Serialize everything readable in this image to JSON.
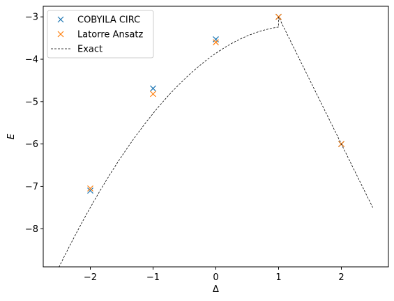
{
  "chart_data": {
    "type": "scatter",
    "title": "",
    "xlabel": "Δ",
    "ylabel": "E",
    "xlim": [
      -2.75,
      2.75
    ],
    "ylim": [
      -8.9,
      -2.75
    ],
    "xticks": [
      -2,
      -1,
      0,
      1,
      2
    ],
    "yticks": [
      -8,
      -7,
      -6,
      -5,
      -4,
      -3
    ],
    "xtick_labels": [
      "−2",
      "−1",
      "0",
      "1",
      "2"
    ],
    "ytick_labels": [
      "−8",
      "−7",
      "−6",
      "−5",
      "−4",
      "−3"
    ],
    "grid": false,
    "legend_position": "top-left",
    "series": [
      {
        "name": "COBYILA CIRC",
        "marker": "x",
        "color": "#1f77b4",
        "x": [
          -2,
          -1,
          0,
          1,
          2
        ],
        "y": [
          -7.1,
          -4.69,
          -3.53,
          -3.0,
          -6.0
        ]
      },
      {
        "name": "Latorre Ansatz",
        "marker": "x",
        "color": "#ff7f0e",
        "x": [
          -2,
          -1,
          0,
          1,
          2
        ],
        "y": [
          -7.05,
          -4.82,
          -3.6,
          -3.0,
          -6.0
        ]
      },
      {
        "name": "Exact",
        "style": "dashed-line",
        "color": "#000000",
        "x": [
          -2.5,
          -2.0,
          -1.5,
          -1.0,
          -0.5,
          0.0,
          0.5,
          1.0,
          1.5,
          2.0,
          2.5
        ],
        "y": [
          -8.66,
          -7.21,
          -6.22,
          -5.36,
          -4.58,
          -3.86,
          -3.35,
          -3.0,
          -4.5,
          -6.0,
          -7.5
        ]
      }
    ]
  }
}
